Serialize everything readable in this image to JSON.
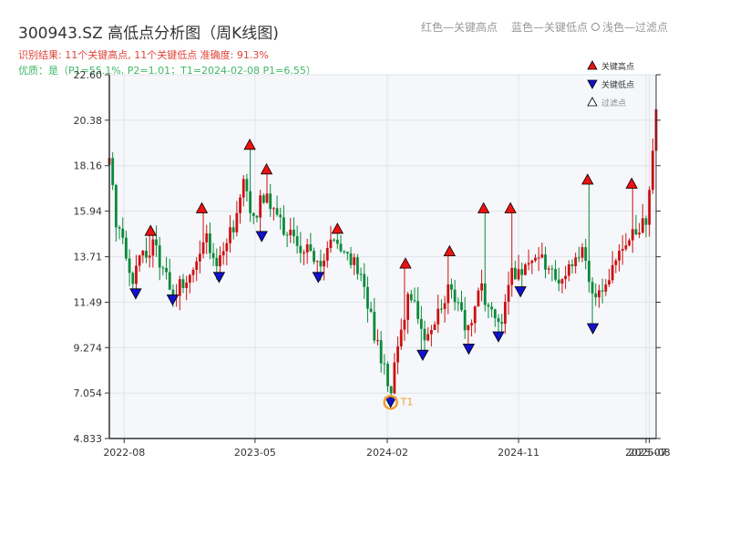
{
  "header": {
    "title": "300943.SZ 高低点分析图（周K线图)",
    "summary": "识别结果: 11个关键高点, 11个关键低点   准确度: 91.3%",
    "quality": "优质：是（P1=55.1%, P2=1.01；T1=2024-02-08 P1=6.55）"
  },
  "top_legend": {
    "red": "红色—关键高点",
    "blue": "蓝色—关键低点",
    "light": "浅色—过滤点"
  },
  "colors": {
    "up": "#cc1111",
    "down": "#0b8a3a",
    "high_marker": "#ee1111",
    "low_marker": "#1111cc",
    "t1_ring": "#f0a030",
    "plot_bg": "#f5f7fa",
    "grid": "#e0e4ea",
    "axis": "#333333"
  },
  "chart_data": {
    "type": "candlestick",
    "title": "300943.SZ 高低点分析图（周K线图)",
    "x_range": [
      "2022-07-01",
      "2025-08-15"
    ],
    "y_range": [
      4.833,
      22.6
    ],
    "y_ticks": [
      "4.833",
      "7.054",
      "9.274",
      "11.49",
      "13.71",
      "15.94",
      "18.16",
      "20.38",
      "22.60"
    ],
    "x_ticks": [
      {
        "date": "2022-08-01",
        "label": "2022-08"
      },
      {
        "date": "2023-05-01",
        "label": "2023-05"
      },
      {
        "date": "2024-02-01",
        "label": "2024-02"
      },
      {
        "date": "2024-11-01",
        "label": "2024-11"
      },
      {
        "date": "2025-07-25",
        "label": "2025-07"
      },
      {
        "date": "2025-08-01",
        "label": "2025-08"
      }
    ],
    "legend": [
      {
        "label": "关键高点",
        "marker": "high"
      },
      {
        "label": "关键低点",
        "marker": "low"
      },
      {
        "label": "过滤点",
        "marker": "filtered"
      }
    ],
    "price_path": [
      [
        "2022-07-01",
        18.2
      ],
      [
        "2022-07-15",
        15.5
      ],
      [
        "2022-08-05",
        13.8
      ],
      [
        "2022-08-20",
        12.7
      ],
      [
        "2022-09-05",
        13.6
      ],
      [
        "2022-10-01",
        14.2
      ],
      [
        "2022-10-20",
        13.2
      ],
      [
        "2022-11-10",
        12.0
      ],
      [
        "2022-12-10",
        12.5
      ],
      [
        "2023-01-01",
        13.6
      ],
      [
        "2023-01-20",
        14.8
      ],
      [
        "2023-02-10",
        13.2
      ],
      [
        "2023-03-01",
        14.5
      ],
      [
        "2023-03-20",
        15.2
      ],
      [
        "2023-04-10",
        18.0
      ],
      [
        "2023-04-25",
        15.2
      ],
      [
        "2023-05-15",
        16.8
      ],
      [
        "2023-06-01",
        16.5
      ],
      [
        "2023-06-20",
        15.4
      ],
      [
        "2023-07-20",
        14.6
      ],
      [
        "2023-08-20",
        13.9
      ],
      [
        "2023-09-10",
        13.2
      ],
      [
        "2023-10-01",
        14.2
      ],
      [
        "2023-10-20",
        14.5
      ],
      [
        "2023-11-15",
        13.7
      ],
      [
        "2023-12-10",
        12.6
      ],
      [
        "2024-01-10",
        9.5
      ],
      [
        "2024-02-08",
        7.0
      ],
      [
        "2024-02-25",
        9.6
      ],
      [
        "2024-03-15",
        11.6
      ],
      [
        "2024-04-05",
        11.0
      ],
      [
        "2024-04-25",
        9.6
      ],
      [
        "2024-05-15",
        10.8
      ],
      [
        "2024-06-10",
        12.2
      ],
      [
        "2024-07-01",
        11.2
      ],
      [
        "2024-07-20",
        10.0
      ],
      [
        "2024-08-10",
        12.4
      ],
      [
        "2024-09-01",
        11.0
      ],
      [
        "2024-09-25",
        10.4
      ],
      [
        "2024-10-15",
        12.8
      ],
      [
        "2024-11-15",
        13.2
      ],
      [
        "2024-12-15",
        13.6
      ],
      [
        "2025-01-15",
        12.6
      ],
      [
        "2025-02-15",
        13.2
      ],
      [
        "2025-03-15",
        14.0
      ],
      [
        "2025-04-08",
        11.5
      ],
      [
        "2025-05-01",
        12.6
      ],
      [
        "2025-06-01",
        13.8
      ],
      [
        "2025-07-01",
        15.0
      ],
      [
        "2025-07-25",
        15.4
      ],
      [
        "2025-08-15",
        21.0
      ]
    ],
    "key_highs": [
      {
        "date": "2022-09-25",
        "value": 14.8
      },
      {
        "date": "2023-01-10",
        "value": 15.9
      },
      {
        "date": "2023-04-20",
        "value": 19.0
      },
      {
        "date": "2023-05-25",
        "value": 17.8
      },
      {
        "date": "2023-10-20",
        "value": 14.9
      },
      {
        "date": "2024-03-10",
        "value": 13.2
      },
      {
        "date": "2024-06-10",
        "value": 13.8
      },
      {
        "date": "2024-08-20",
        "value": 15.9
      },
      {
        "date": "2024-10-15",
        "value": 15.9
      },
      {
        "date": "2025-03-25",
        "value": 17.3
      },
      {
        "date": "2025-06-25",
        "value": 17.1
      }
    ],
    "key_lows": [
      {
        "date": "2022-08-25",
        "value": 12.1
      },
      {
        "date": "2022-11-10",
        "value": 11.8
      },
      {
        "date": "2023-02-15",
        "value": 12.9
      },
      {
        "date": "2023-05-15",
        "value": 14.9
      },
      {
        "date": "2023-09-10",
        "value": 12.9
      },
      {
        "date": "2024-02-08",
        "value": 6.8
      },
      {
        "date": "2024-04-15",
        "value": 9.1
      },
      {
        "date": "2024-07-20",
        "value": 9.4
      },
      {
        "date": "2024-09-20",
        "value": 10.0
      },
      {
        "date": "2024-11-05",
        "value": 12.2
      },
      {
        "date": "2025-04-05",
        "value": 10.4
      }
    ],
    "t1": {
      "date": "2024-02-08",
      "value": 6.6,
      "label": "T1"
    }
  }
}
